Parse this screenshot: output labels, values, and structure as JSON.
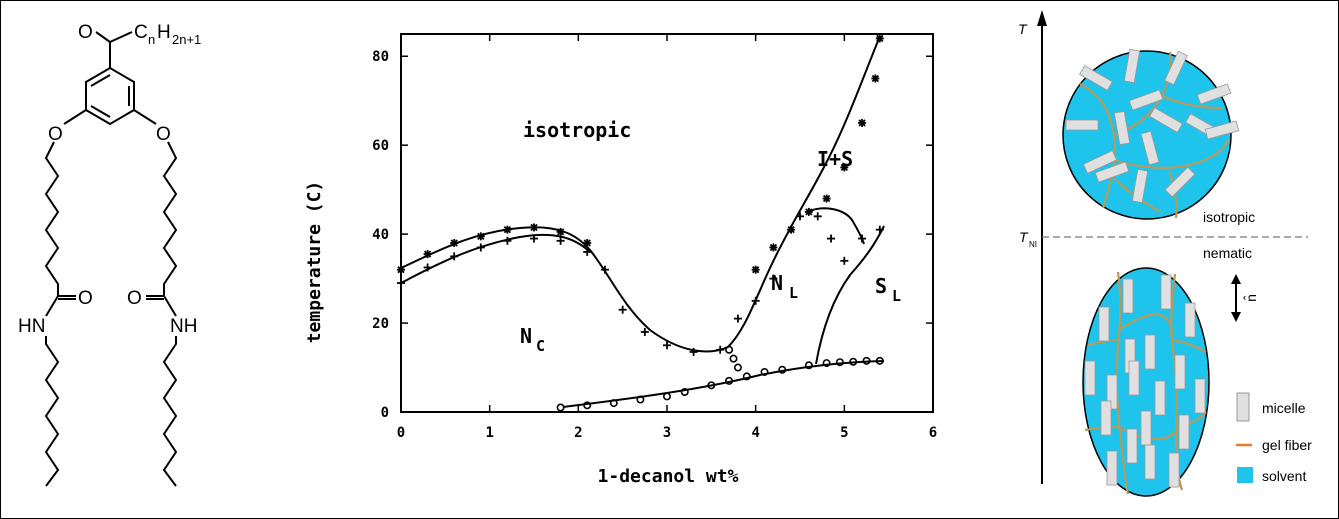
{
  "molecule": {
    "ketone_o": "O",
    "chain_c": "C",
    "chain_n": "n",
    "chain_h": "H",
    "chain_sub": "2n+1",
    "ether_left": "O",
    "ether_right": "O",
    "amide_o_left": "O",
    "amide_o_right": "O",
    "nh_left": "HN",
    "nh_right": "NH"
  },
  "chart_data": {
    "type": "scatter",
    "xlabel": "1-decanol wt%",
    "ylabel": "temperature (C)",
    "xlim": [
      0,
      6
    ],
    "ylim": [
      0,
      85
    ],
    "xticks": [
      "0",
      "1",
      "2",
      "3",
      "4",
      "5",
      "6"
    ],
    "yticks": [
      "0",
      "20",
      "40",
      "60",
      "80"
    ],
    "region_labels": {
      "isotropic": "isotropic",
      "i_s": "I+S",
      "nl_main": "N",
      "nl_sub": "L",
      "nc_main": "N",
      "nc_sub": "C",
      "sl_main": "S",
      "sl_sub": "L"
    },
    "series": [
      {
        "marker": "star",
        "points": [
          [
            0,
            32
          ],
          [
            0.3,
            35.5
          ],
          [
            0.6,
            38
          ],
          [
            0.9,
            39.5
          ],
          [
            1.2,
            41
          ],
          [
            1.5,
            41.5
          ],
          [
            1.8,
            40.5
          ],
          [
            2.1,
            38
          ],
          [
            4.0,
            32
          ],
          [
            4.2,
            37
          ],
          [
            4.4,
            41
          ],
          [
            4.6,
            45
          ],
          [
            4.8,
            48
          ],
          [
            5.0,
            55
          ],
          [
            5.2,
            65
          ],
          [
            5.35,
            75
          ],
          [
            5.4,
            84
          ]
        ]
      },
      {
        "marker": "cross",
        "points": [
          [
            0,
            29
          ],
          [
            0.3,
            32.5
          ],
          [
            0.6,
            35
          ],
          [
            0.9,
            37
          ],
          [
            1.2,
            38.5
          ],
          [
            1.5,
            39
          ],
          [
            1.8,
            38.5
          ],
          [
            2.1,
            36
          ],
          [
            2.3,
            32
          ],
          [
            2.5,
            23
          ],
          [
            2.75,
            18
          ],
          [
            3.0,
            15
          ],
          [
            3.3,
            13.5
          ],
          [
            3.6,
            14
          ],
          [
            3.8,
            21
          ],
          [
            4.0,
            25
          ],
          [
            4.2,
            30
          ],
          [
            4.5,
            44
          ],
          [
            4.7,
            44
          ],
          [
            4.85,
            39
          ],
          [
            5.0,
            34
          ],
          [
            5.2,
            39
          ],
          [
            5.4,
            41
          ]
        ]
      },
      {
        "marker": "circle",
        "points": [
          [
            1.8,
            1
          ],
          [
            2.1,
            1.5
          ],
          [
            2.4,
            2
          ],
          [
            2.7,
            2.8
          ],
          [
            3.0,
            3.5
          ],
          [
            3.2,
            4.5
          ],
          [
            3.5,
            6
          ],
          [
            3.7,
            7
          ],
          [
            3.9,
            8
          ],
          [
            4.1,
            9
          ],
          [
            4.3,
            9.5
          ],
          [
            4.6,
            10.5
          ],
          [
            4.8,
            11
          ],
          [
            4.95,
            11.2
          ],
          [
            5.1,
            11.3
          ],
          [
            5.25,
            11.5
          ],
          [
            5.4,
            11.5
          ],
          [
            3.7,
            14
          ],
          [
            3.75,
            12
          ],
          [
            3.8,
            10
          ]
        ]
      }
    ]
  },
  "schematic": {
    "t_axis": "T",
    "tni_main": "T",
    "tni_sub": "NI",
    "isotropic_label": "isotropic",
    "nematic_label": "nematic",
    "director_label": "n̂",
    "legend": [
      {
        "label": "micelle",
        "color": "#e0e0e0"
      },
      {
        "label": "gel fiber",
        "color": "#e87a2a"
      },
      {
        "label": "solvent",
        "color": "#1ec4ec"
      }
    ]
  }
}
